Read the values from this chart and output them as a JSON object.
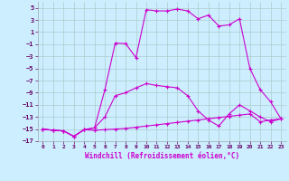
{
  "xlabel": "Windchill (Refroidissement éolien,°C)",
  "bg_color": "#cceeff",
  "grid_color": "#aacccc",
  "line_color": "#cc00cc",
  "xlim": [
    -0.5,
    23.5
  ],
  "ylim": [
    -17,
    6
  ],
  "yticks": [
    5,
    3,
    1,
    -1,
    -3,
    -5,
    -7,
    -9,
    -11,
    -13,
    -15,
    -17
  ],
  "xticks": [
    0,
    1,
    2,
    3,
    4,
    5,
    6,
    7,
    8,
    9,
    10,
    11,
    12,
    13,
    14,
    15,
    16,
    17,
    18,
    19,
    20,
    21,
    22,
    23
  ],
  "series": [
    {
      "x": [
        0,
        1,
        2,
        3,
        4,
        5,
        6,
        7,
        8,
        9,
        10,
        11,
        12,
        13,
        14,
        15,
        16,
        17,
        18,
        19,
        20,
        21,
        22,
        23
      ],
      "y": [
        -15.0,
        -15.2,
        -15.3,
        -16.2,
        -15.1,
        -15.2,
        -15.1,
        -15.0,
        -14.9,
        -14.7,
        -14.5,
        -14.3,
        -14.1,
        -13.9,
        -13.7,
        -13.5,
        -13.3,
        -13.1,
        -12.9,
        -12.7,
        -12.5,
        -13.8,
        -13.5,
        -13.3
      ]
    },
    {
      "x": [
        0,
        1,
        2,
        3,
        4,
        5,
        6,
        7,
        8,
        9,
        10,
        11,
        12,
        13,
        14,
        15,
        16,
        17,
        18,
        19,
        20,
        21,
        22,
        23
      ],
      "y": [
        -15.0,
        -15.2,
        -15.3,
        -16.2,
        -15.1,
        -14.8,
        -13.0,
        -9.5,
        -9.0,
        -8.2,
        -7.5,
        -7.8,
        -8.0,
        -8.2,
        -9.5,
        -12.0,
        -13.5,
        -14.5,
        -12.5,
        -11.0,
        -12.0,
        -13.0,
        -13.8,
        -13.3
      ]
    },
    {
      "x": [
        0,
        1,
        2,
        3,
        4,
        5,
        6,
        7,
        8,
        9,
        10,
        11,
        12,
        13,
        14,
        15,
        16,
        17,
        18,
        19,
        20,
        21,
        22,
        23
      ],
      "y": [
        -15.0,
        -15.2,
        -15.3,
        -16.2,
        -15.1,
        -14.8,
        -8.5,
        -0.8,
        -0.9,
        -3.2,
        4.7,
        4.5,
        4.5,
        4.8,
        4.5,
        3.2,
        3.8,
        2.0,
        2.2,
        3.2,
        -5.0,
        -8.5,
        -10.5,
        -13.3
      ]
    }
  ]
}
